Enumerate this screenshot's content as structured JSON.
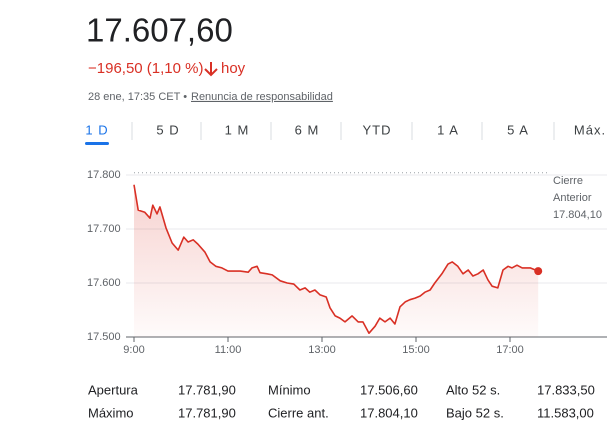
{
  "header": {
    "price": "17.607,60",
    "change": "−196,50 (1,10 %)",
    "change_period": "hoy",
    "timestamp": "28 ene, 17:35 CET •",
    "disclaimer": "Renuncia de responsabilidad"
  },
  "tabs": [
    "1 D",
    "5 D",
    "1 M",
    "6 M",
    "YTD",
    "1 A",
    "5 A",
    "Máx."
  ],
  "chart_data": {
    "type": "line",
    "color": "#d93025",
    "x": [
      9.0,
      9.09,
      9.23,
      9.34,
      9.4,
      9.49,
      9.55,
      9.68,
      9.81,
      9.94,
      10.06,
      10.15,
      10.26,
      10.36,
      10.51,
      10.62,
      10.74,
      10.87,
      11.0,
      11.15,
      11.26,
      11.43,
      11.51,
      11.62,
      11.68,
      11.83,
      11.94,
      12.11,
      12.26,
      12.4,
      12.53,
      12.64,
      12.74,
      12.85,
      12.96,
      13.09,
      13.17,
      13.28,
      13.38,
      13.49,
      13.64,
      13.77,
      13.87,
      14.0,
      14.13,
      14.23,
      14.34,
      14.45,
      14.55,
      14.66,
      14.77,
      14.87,
      14.98,
      15.09,
      15.19,
      15.3,
      15.4,
      15.55,
      15.68,
      15.77,
      15.89,
      16.0,
      16.11,
      16.21,
      16.32,
      16.43,
      16.53,
      16.62,
      16.74,
      16.85,
      16.96,
      17.04,
      17.15,
      17.26,
      17.34,
      17.43,
      17.6
    ],
    "values": [
      17782,
      17735,
      17731,
      17720,
      17744,
      17728,
      17741,
      17702,
      17674,
      17661,
      17685,
      17676,
      17680,
      17672,
      17657,
      17639,
      17631,
      17628,
      17622,
      17622,
      17622,
      17620,
      17628,
      17631,
      17619,
      17617,
      17615,
      17604,
      17600,
      17598,
      17587,
      17591,
      17583,
      17587,
      17578,
      17574,
      17554,
      17539,
      17535,
      17528,
      17539,
      17528,
      17528,
      17507,
      17520,
      17535,
      17528,
      17535,
      17524,
      17556,
      17565,
      17569,
      17572,
      17576,
      17583,
      17587,
      17600,
      17617,
      17635,
      17639,
      17631,
      17617,
      17624,
      17613,
      17617,
      17624,
      17606,
      17594,
      17591,
      17624,
      17631,
      17628,
      17633,
      17628,
      17628,
      17628,
      17622
    ],
    "xlim": [
      9,
      19
    ],
    "xticks": [
      {
        "value": 9,
        "label": "9:00"
      },
      {
        "value": 11,
        "label": "11:00"
      },
      {
        "value": 13,
        "label": "13:00"
      },
      {
        "value": 15,
        "label": "15:00"
      },
      {
        "value": 17,
        "label": "17:00"
      }
    ],
    "ylim": [
      17500,
      17800
    ],
    "yticks": [
      {
        "value": 17500,
        "label": "17.500"
      },
      {
        "value": 17600,
        "label": "17.600"
      },
      {
        "value": 17700,
        "label": "17.700"
      },
      {
        "value": 17800,
        "label": "17.800"
      }
    ],
    "grid": true,
    "previous_close": {
      "value": 17804.1,
      "label_lines": [
        "Cierre",
        "Anterior"
      ],
      "value_label": "17.804,10"
    }
  },
  "stats": {
    "rows": [
      [
        "Apertura",
        "17.781,90",
        "Mínimo",
        "17.506,60",
        "Alto 52 s.",
        "17.833,50"
      ],
      [
        "Máximo",
        "17.781,90",
        "Cierre ant.",
        "17.804,10",
        "Bajo 52 s.",
        "11.583,00"
      ]
    ]
  }
}
